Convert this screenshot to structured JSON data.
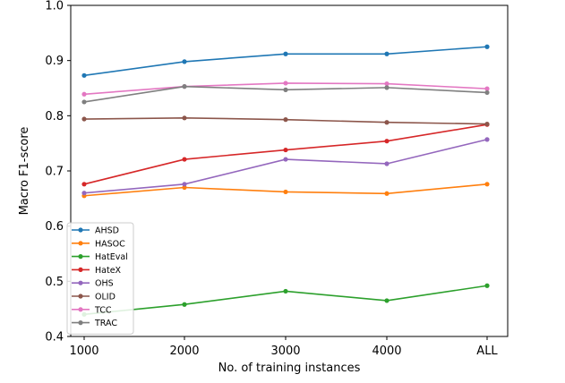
{
  "chart_data": {
    "type": "line",
    "xlabel": "No. of training instances",
    "ylabel": "Macro F1-score",
    "categories": [
      "1000",
      "2000",
      "3000",
      "4000",
      "ALL"
    ],
    "ylim": [
      0.4,
      1.0
    ],
    "yticks": [
      "0.4",
      "0.5",
      "0.6",
      "0.7",
      "0.8",
      "0.9",
      "1.0"
    ],
    "grid": false,
    "legend_position": "lower-left",
    "series": [
      {
        "name": "AHSD",
        "color": "#1f77b4",
        "values": [
          0.873,
          0.898,
          0.912,
          0.912,
          0.925
        ]
      },
      {
        "name": "HASOC",
        "color": "#ff7f0e",
        "values": [
          0.655,
          0.67,
          0.662,
          0.659,
          0.676
        ]
      },
      {
        "name": "HatEval",
        "color": "#2ca02c",
        "values": [
          0.44,
          0.458,
          0.482,
          0.465,
          0.492
        ]
      },
      {
        "name": "HateX",
        "color": "#d62728",
        "values": [
          0.676,
          0.721,
          0.738,
          0.754,
          0.784
        ]
      },
      {
        "name": "OHS",
        "color": "#9467bd",
        "values": [
          0.66,
          0.676,
          0.721,
          0.713,
          0.757
        ]
      },
      {
        "name": "OLID",
        "color": "#8c564b",
        "values": [
          0.794,
          0.796,
          0.793,
          0.788,
          0.785
        ]
      },
      {
        "name": "TCC",
        "color": "#e377c2",
        "values": [
          0.839,
          0.853,
          0.859,
          0.858,
          0.849
        ]
      },
      {
        "name": "TRAC",
        "color": "#7f7f7f",
        "values": [
          0.825,
          0.853,
          0.847,
          0.851,
          0.842
        ]
      }
    ]
  }
}
